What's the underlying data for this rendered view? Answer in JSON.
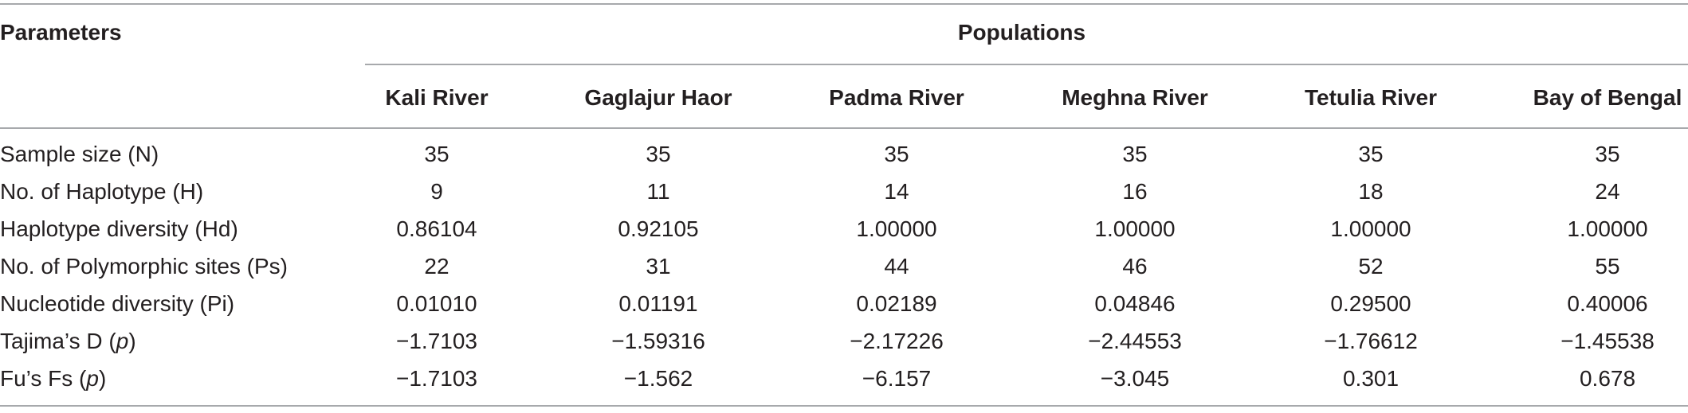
{
  "table": {
    "corner_header": "Parameters",
    "group_header": "Populations",
    "columns": [
      "Kali River",
      "Gaglajur Haor",
      "Padma River",
      "Meghna River",
      "Tetulia River",
      "Bay of Bengal"
    ],
    "rows": [
      {
        "label": "Sample size (N)",
        "values": [
          "35",
          "35",
          "35",
          "35",
          "35",
          "35"
        ]
      },
      {
        "label": "No. of Haplotype (H)",
        "values": [
          "9",
          "11",
          "14",
          "16",
          "18",
          "24"
        ]
      },
      {
        "label": "Haplotype diversity (Hd)",
        "values": [
          "0.86104",
          "0.92105",
          "1.00000",
          "1.00000",
          "1.00000",
          "1.00000"
        ]
      },
      {
        "label": "No. of Polymorphic sites (Ps)",
        "values": [
          "22",
          "31",
          "44",
          "46",
          "52",
          "55"
        ]
      },
      {
        "label": "Nucleotide diversity (Pi)",
        "values": [
          "0.01010",
          "0.01191",
          "0.02189",
          "0.04846",
          "0.29500",
          "0.40006"
        ]
      },
      {
        "label_prefix": "Tajima’s D (",
        "label_italic": "p",
        "label_suffix": ")",
        "values": [
          "−1.7103",
          "−1.59316",
          "−2.17226",
          "−2.44553",
          "−1.76612",
          "−1.45538"
        ]
      },
      {
        "label_prefix": "Fu’s Fs (",
        "label_italic": "p",
        "label_suffix": ")",
        "values": [
          "−1.7103",
          "−1.562",
          "−6.157",
          "−3.045",
          "0.301",
          "0.678"
        ]
      }
    ]
  }
}
